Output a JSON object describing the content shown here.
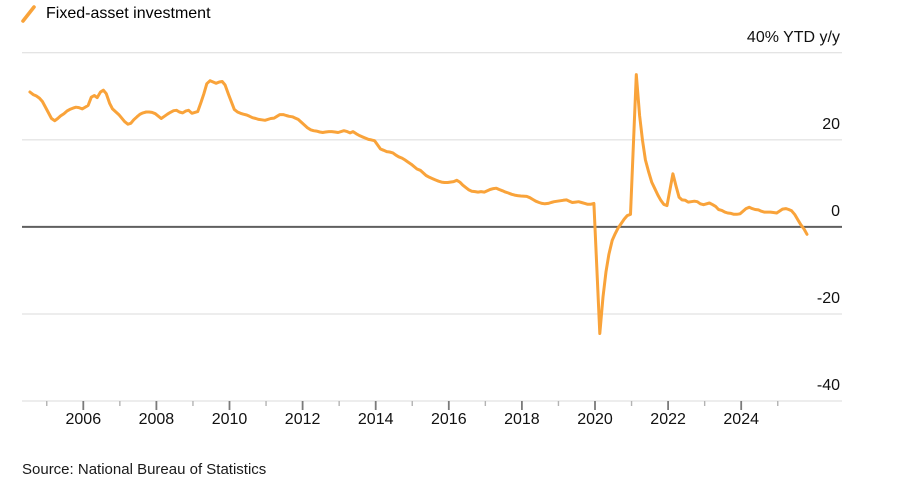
{
  "legend": {
    "label": "Fixed-asset investment",
    "marker_color": "#F9A33A"
  },
  "source": {
    "text": "Source: National Bureau of Statistics"
  },
  "chart_data": {
    "type": "line",
    "title": "",
    "series_name": "Fixed-asset investment",
    "unit_label": "% YTD y/y",
    "line_color": "#F9A33A",
    "grid_color": "#DBDBDB",
    "zero_line_color": "#5F5F5F",
    "major_tick_color": "#7A7A7A",
    "minor_tick_color": "#B3B3B3",
    "xlim": [
      2004.33,
      2026.77
    ],
    "ylim": [
      -40,
      40
    ],
    "grid": true,
    "legend_position": "top-left",
    "y_ticks": [
      {
        "value": 40,
        "label": "40% YTD y/y"
      },
      {
        "value": 20,
        "label": "20"
      },
      {
        "value": 0,
        "label": "0"
      },
      {
        "value": -20,
        "label": "-20"
      },
      {
        "value": -40,
        "label": "-40"
      }
    ],
    "x_major_ticks": [
      {
        "value": 2006,
        "label": "2006"
      },
      {
        "value": 2008,
        "label": "2008"
      },
      {
        "value": 2010,
        "label": "2010"
      },
      {
        "value": 2012,
        "label": "2012"
      },
      {
        "value": 2014,
        "label": "2014"
      },
      {
        "value": 2016,
        "label": "2016"
      },
      {
        "value": 2018,
        "label": "2018"
      },
      {
        "value": 2020,
        "label": "2020"
      },
      {
        "value": 2022,
        "label": "2022"
      },
      {
        "value": 2024,
        "label": "2024"
      }
    ],
    "x_minor_ticks": [
      2005,
      2007,
      2009,
      2011,
      2013,
      2015,
      2017,
      2019,
      2021,
      2023,
      2025
    ],
    "points": [
      [
        2004.54,
        31.0
      ],
      [
        2004.63,
        30.4
      ],
      [
        2004.71,
        30.1
      ],
      [
        2004.8,
        29.6
      ],
      [
        2004.88,
        28.8
      ],
      [
        2004.97,
        27.4
      ],
      [
        2005.13,
        24.9
      ],
      [
        2005.22,
        24.4
      ],
      [
        2005.3,
        24.9
      ],
      [
        2005.38,
        25.5
      ],
      [
        2005.47,
        26.0
      ],
      [
        2005.55,
        26.6
      ],
      [
        2005.63,
        27.0
      ],
      [
        2005.72,
        27.3
      ],
      [
        2005.8,
        27.5
      ],
      [
        2005.88,
        27.4
      ],
      [
        2005.97,
        27.1
      ],
      [
        2006.13,
        27.9
      ],
      [
        2006.22,
        29.8
      ],
      [
        2006.3,
        30.2
      ],
      [
        2006.38,
        29.7
      ],
      [
        2006.47,
        31.0
      ],
      [
        2006.55,
        31.4
      ],
      [
        2006.63,
        30.6
      ],
      [
        2006.72,
        28.4
      ],
      [
        2006.8,
        27.1
      ],
      [
        2006.88,
        26.5
      ],
      [
        2006.97,
        25.8
      ],
      [
        2007.13,
        24.2
      ],
      [
        2007.22,
        23.6
      ],
      [
        2007.3,
        23.8
      ],
      [
        2007.38,
        24.6
      ],
      [
        2007.47,
        25.3
      ],
      [
        2007.55,
        25.9
      ],
      [
        2007.63,
        26.2
      ],
      [
        2007.72,
        26.4
      ],
      [
        2007.8,
        26.4
      ],
      [
        2007.88,
        26.3
      ],
      [
        2007.97,
        26.0
      ],
      [
        2008.13,
        24.9
      ],
      [
        2008.22,
        25.4
      ],
      [
        2008.3,
        25.9
      ],
      [
        2008.38,
        26.3
      ],
      [
        2008.47,
        26.7
      ],
      [
        2008.55,
        26.8
      ],
      [
        2008.63,
        26.4
      ],
      [
        2008.72,
        26.2
      ],
      [
        2008.8,
        26.6
      ],
      [
        2008.88,
        26.8
      ],
      [
        2008.97,
        26.1
      ],
      [
        2009.13,
        26.5
      ],
      [
        2009.22,
        28.6
      ],
      [
        2009.3,
        30.6
      ],
      [
        2009.38,
        32.9
      ],
      [
        2009.47,
        33.6
      ],
      [
        2009.55,
        33.3
      ],
      [
        2009.63,
        33.0
      ],
      [
        2009.72,
        33.3
      ],
      [
        2009.8,
        33.4
      ],
      [
        2009.88,
        32.6
      ],
      [
        2009.97,
        30.5
      ],
      [
        2010.13,
        27.0
      ],
      [
        2010.22,
        26.4
      ],
      [
        2010.3,
        26.1
      ],
      [
        2010.38,
        25.9
      ],
      [
        2010.47,
        25.7
      ],
      [
        2010.55,
        25.4
      ],
      [
        2010.63,
        25.1
      ],
      [
        2010.72,
        24.9
      ],
      [
        2010.8,
        24.7
      ],
      [
        2010.88,
        24.6
      ],
      [
        2010.97,
        24.5
      ],
      [
        2011.13,
        24.9
      ],
      [
        2011.22,
        25.0
      ],
      [
        2011.3,
        25.4
      ],
      [
        2011.38,
        25.8
      ],
      [
        2011.47,
        25.8
      ],
      [
        2011.55,
        25.6
      ],
      [
        2011.63,
        25.4
      ],
      [
        2011.72,
        25.3
      ],
      [
        2011.8,
        25.0
      ],
      [
        2011.88,
        24.7
      ],
      [
        2011.97,
        24.0
      ],
      [
        2012.13,
        22.8
      ],
      [
        2012.22,
        22.3
      ],
      [
        2012.3,
        22.1
      ],
      [
        2012.38,
        22.0
      ],
      [
        2012.47,
        21.8
      ],
      [
        2012.55,
        21.7
      ],
      [
        2012.63,
        21.8
      ],
      [
        2012.72,
        21.9
      ],
      [
        2012.8,
        21.9
      ],
      [
        2012.88,
        21.8
      ],
      [
        2012.97,
        21.7
      ],
      [
        2013.13,
        22.1
      ],
      [
        2013.22,
        21.9
      ],
      [
        2013.3,
        21.6
      ],
      [
        2013.38,
        21.9
      ],
      [
        2013.47,
        21.4
      ],
      [
        2013.55,
        21.0
      ],
      [
        2013.63,
        20.7
      ],
      [
        2013.72,
        20.4
      ],
      [
        2013.8,
        20.1
      ],
      [
        2013.88,
        20.0
      ],
      [
        2013.97,
        19.8
      ],
      [
        2014.13,
        17.9
      ],
      [
        2014.22,
        17.6
      ],
      [
        2014.3,
        17.3
      ],
      [
        2014.38,
        17.2
      ],
      [
        2014.47,
        17.0
      ],
      [
        2014.55,
        16.5
      ],
      [
        2014.63,
        16.1
      ],
      [
        2014.72,
        15.8
      ],
      [
        2014.8,
        15.4
      ],
      [
        2014.88,
        14.9
      ],
      [
        2014.97,
        14.4
      ],
      [
        2015.13,
        13.3
      ],
      [
        2015.22,
        13.0
      ],
      [
        2015.3,
        12.4
      ],
      [
        2015.38,
        11.8
      ],
      [
        2015.47,
        11.4
      ],
      [
        2015.55,
        11.1
      ],
      [
        2015.63,
        10.8
      ],
      [
        2015.72,
        10.5
      ],
      [
        2015.8,
        10.3
      ],
      [
        2015.88,
        10.2
      ],
      [
        2015.97,
        10.2
      ],
      [
        2016.13,
        10.4
      ],
      [
        2016.22,
        10.7
      ],
      [
        2016.3,
        10.3
      ],
      [
        2016.38,
        9.6
      ],
      [
        2016.47,
        9.0
      ],
      [
        2016.55,
        8.5
      ],
      [
        2016.63,
        8.2
      ],
      [
        2016.72,
        8.1
      ],
      [
        2016.8,
        8.0
      ],
      [
        2016.88,
        8.1
      ],
      [
        2016.97,
        8.0
      ],
      [
        2017.13,
        8.6
      ],
      [
        2017.22,
        8.8
      ],
      [
        2017.3,
        8.9
      ],
      [
        2017.38,
        8.6
      ],
      [
        2017.47,
        8.3
      ],
      [
        2017.55,
        8.0
      ],
      [
        2017.63,
        7.8
      ],
      [
        2017.72,
        7.5
      ],
      [
        2017.8,
        7.3
      ],
      [
        2017.88,
        7.2
      ],
      [
        2017.97,
        7.1
      ],
      [
        2018.13,
        7.0
      ],
      [
        2018.22,
        6.7
      ],
      [
        2018.3,
        6.3
      ],
      [
        2018.38,
        5.9
      ],
      [
        2018.47,
        5.6
      ],
      [
        2018.55,
        5.4
      ],
      [
        2018.63,
        5.3
      ],
      [
        2018.72,
        5.4
      ],
      [
        2018.8,
        5.6
      ],
      [
        2018.88,
        5.8
      ],
      [
        2018.97,
        5.9
      ],
      [
        2019.13,
        6.1
      ],
      [
        2019.22,
        6.2
      ],
      [
        2019.3,
        5.9
      ],
      [
        2019.38,
        5.6
      ],
      [
        2019.47,
        5.7
      ],
      [
        2019.55,
        5.8
      ],
      [
        2019.63,
        5.6
      ],
      [
        2019.72,
        5.4
      ],
      [
        2019.8,
        5.2
      ],
      [
        2019.88,
        5.2
      ],
      [
        2019.97,
        5.4
      ],
      [
        2020.13,
        -24.5
      ],
      [
        2020.22,
        -16.1
      ],
      [
        2020.3,
        -10.3
      ],
      [
        2020.38,
        -6.3
      ],
      [
        2020.47,
        -3.1
      ],
      [
        2020.55,
        -1.6
      ],
      [
        2020.63,
        -0.3
      ],
      [
        2020.72,
        0.8
      ],
      [
        2020.8,
        1.8
      ],
      [
        2020.88,
        2.6
      ],
      [
        2020.97,
        2.9
      ],
      [
        2021.13,
        35.0
      ],
      [
        2021.22,
        25.6
      ],
      [
        2021.3,
        19.9
      ],
      [
        2021.38,
        15.4
      ],
      [
        2021.47,
        12.6
      ],
      [
        2021.55,
        10.3
      ],
      [
        2021.63,
        8.9
      ],
      [
        2021.72,
        7.3
      ],
      [
        2021.8,
        6.1
      ],
      [
        2021.88,
        5.2
      ],
      [
        2021.97,
        4.9
      ],
      [
        2022.13,
        12.2
      ],
      [
        2022.22,
        9.3
      ],
      [
        2022.3,
        6.8
      ],
      [
        2022.38,
        6.2
      ],
      [
        2022.47,
        6.1
      ],
      [
        2022.55,
        5.7
      ],
      [
        2022.63,
        5.8
      ],
      [
        2022.72,
        5.9
      ],
      [
        2022.8,
        5.8
      ],
      [
        2022.88,
        5.3
      ],
      [
        2022.97,
        5.1
      ],
      [
        2023.13,
        5.5
      ],
      [
        2023.22,
        5.1
      ],
      [
        2023.3,
        4.7
      ],
      [
        2023.38,
        4.0
      ],
      [
        2023.47,
        3.8
      ],
      [
        2023.55,
        3.4
      ],
      [
        2023.63,
        3.2
      ],
      [
        2023.72,
        3.1
      ],
      [
        2023.8,
        2.9
      ],
      [
        2023.88,
        2.9
      ],
      [
        2023.97,
        3.0
      ],
      [
        2024.13,
        4.2
      ],
      [
        2024.22,
        4.5
      ],
      [
        2024.3,
        4.2
      ],
      [
        2024.38,
        4.0
      ],
      [
        2024.47,
        3.9
      ],
      [
        2024.55,
        3.6
      ],
      [
        2024.63,
        3.4
      ],
      [
        2024.72,
        3.4
      ],
      [
        2024.8,
        3.4
      ],
      [
        2024.88,
        3.3
      ],
      [
        2024.97,
        3.2
      ],
      [
        2025.13,
        4.1
      ],
      [
        2025.22,
        4.2
      ],
      [
        2025.3,
        4.0
      ],
      [
        2025.38,
        3.7
      ],
      [
        2025.47,
        2.8
      ],
      [
        2025.55,
        1.6
      ],
      [
        2025.63,
        0.5
      ],
      [
        2025.72,
        -0.5
      ],
      [
        2025.8,
        -1.7
      ]
    ]
  }
}
